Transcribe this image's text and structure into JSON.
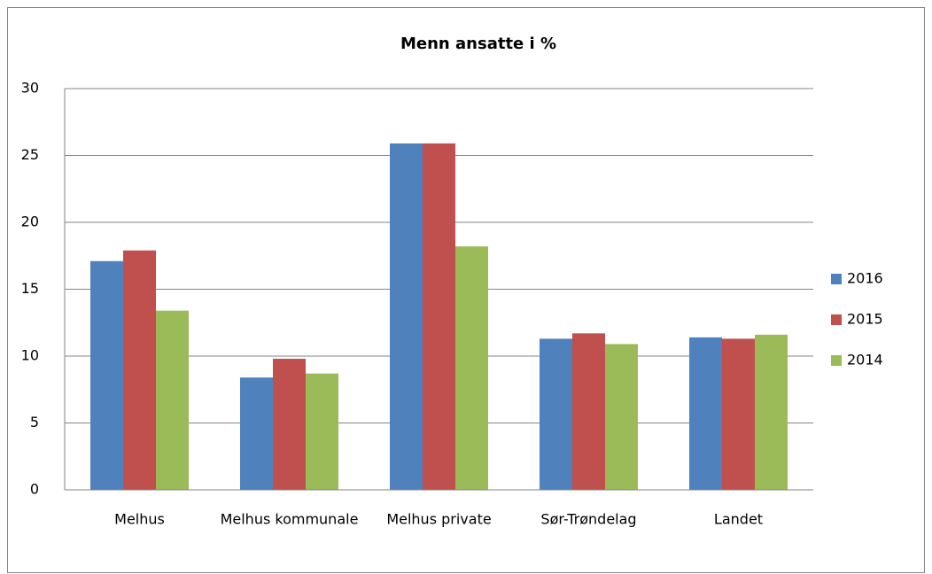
{
  "chart_data": {
    "type": "bar",
    "title": "Menn ansatte i %",
    "categories": [
      "Melhus",
      "Melhus kommunale",
      "Melhus private",
      "Sør-Trøndelag",
      "Landet"
    ],
    "series": [
      {
        "name": "2016",
        "color": "#4f81bd",
        "values": [
          17.1,
          8.4,
          25.9,
          11.3,
          11.4
        ]
      },
      {
        "name": "2015",
        "color": "#c0504d",
        "values": [
          17.9,
          9.8,
          25.9,
          11.7,
          11.3
        ]
      },
      {
        "name": "2014",
        "color": "#9bbb59",
        "values": [
          13.4,
          8.7,
          18.2,
          10.9,
          11.6
        ]
      }
    ],
    "ylim": [
      0,
      30
    ],
    "yticks": [
      0,
      5,
      10,
      15,
      20,
      25,
      30
    ],
    "grid": true,
    "legend": "right"
  }
}
